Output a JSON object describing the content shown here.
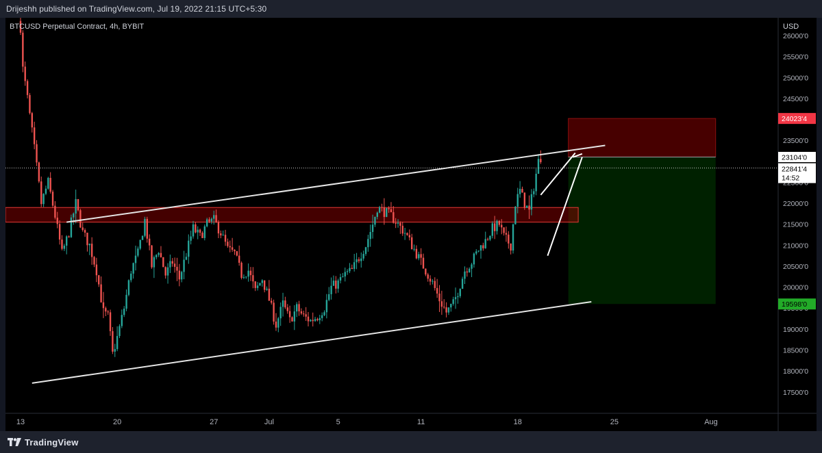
{
  "header": {
    "publish_text": "Drijeshh published on TradingView.com, Jul 19, 2022 21:15 UTC+5:30"
  },
  "chart_title": "BTCUSD Perpetual Contract, 4h, BYBIT",
  "footer": {
    "brand": "TradingView"
  },
  "chart_data": {
    "type": "candlestick",
    "symbol": "BTCUSD Perpetual Contract",
    "interval": "4h",
    "exchange": "BYBIT",
    "currency": "USD",
    "ylim": [
      17000,
      26500
    ],
    "yticks": [
      {
        "v": 17500,
        "label": "17500'0"
      },
      {
        "v": 18000,
        "label": "18000'0"
      },
      {
        "v": 18500,
        "label": "18500'0"
      },
      {
        "v": 19000,
        "label": "19000'0"
      },
      {
        "v": 19500,
        "label": "19500'0"
      },
      {
        "v": 20000,
        "label": "20000'0"
      },
      {
        "v": 20500,
        "label": "20500'0"
      },
      {
        "v": 21000,
        "label": "21000'0"
      },
      {
        "v": 21500,
        "label": "21500'0"
      },
      {
        "v": 22000,
        "label": "22000'0"
      },
      {
        "v": 22500,
        "label": "22500'0"
      },
      {
        "v": 23500,
        "label": "23500'0"
      },
      {
        "v": 24500,
        "label": "24500'0"
      },
      {
        "v": 25000,
        "label": "25000'0"
      },
      {
        "v": 25500,
        "label": "25500'0"
      },
      {
        "v": 26000,
        "label": "26000'0"
      }
    ],
    "xticks": [
      {
        "i": 0,
        "label": "13"
      },
      {
        "i": 42,
        "label": "20"
      },
      {
        "i": 84,
        "label": "27"
      },
      {
        "i": 108,
        "label": "Jul"
      },
      {
        "i": 138,
        "label": "5"
      },
      {
        "i": 174,
        "label": "11"
      },
      {
        "i": 216,
        "label": "18"
      },
      {
        "i": 258,
        "label": "25"
      },
      {
        "i": 300,
        "label": "Aug"
      }
    ],
    "candles_per_day": 6,
    "path": [
      [
        0,
        26200
      ],
      [
        1,
        25200
      ],
      [
        3,
        24500
      ],
      [
        6,
        23300
      ],
      [
        9,
        22000
      ],
      [
        12,
        22500
      ],
      [
        15,
        21700
      ],
      [
        18,
        20800
      ],
      [
        21,
        21300
      ],
      [
        24,
        22000
      ],
      [
        27,
        21300
      ],
      [
        30,
        21000
      ],
      [
        33,
        20400
      ],
      [
        36,
        19400
      ],
      [
        38,
        19300
      ],
      [
        40,
        18400
      ],
      [
        42,
        18800
      ],
      [
        45,
        19500
      ],
      [
        48,
        20400
      ],
      [
        51,
        20800
      ],
      [
        54,
        21600
      ],
      [
        57,
        20500
      ],
      [
        60,
        20900
      ],
      [
        63,
        20300
      ],
      [
        66,
        20600
      ],
      [
        69,
        20200
      ],
      [
        72,
        20800
      ],
      [
        75,
        21400
      ],
      [
        78,
        21200
      ],
      [
        81,
        21500
      ],
      [
        84,
        21600
      ],
      [
        87,
        21300
      ],
      [
        90,
        20900
      ],
      [
        93,
        20800
      ],
      [
        96,
        20300
      ],
      [
        99,
        20400
      ],
      [
        102,
        19900
      ],
      [
        105,
        20200
      ],
      [
        108,
        19700
      ],
      [
        111,
        19100
      ],
      [
        114,
        19600
      ],
      [
        117,
        19200
      ],
      [
        120,
        19500
      ],
      [
        123,
        19300
      ],
      [
        126,
        19200
      ],
      [
        129,
        19300
      ],
      [
        132,
        19500
      ],
      [
        135,
        20000
      ],
      [
        138,
        20100
      ],
      [
        141,
        20300
      ],
      [
        144,
        20400
      ],
      [
        147,
        20700
      ],
      [
        150,
        21000
      ],
      [
        153,
        21500
      ],
      [
        155,
        21900
      ],
      [
        158,
        21800
      ],
      [
        161,
        21700
      ],
      [
        164,
        21500
      ],
      [
        167,
        21300
      ],
      [
        170,
        21000
      ],
      [
        173,
        20700
      ],
      [
        176,
        20400
      ],
      [
        179,
        20100
      ],
      [
        182,
        19700
      ],
      [
        185,
        19400
      ],
      [
        188,
        19600
      ],
      [
        190,
        19900
      ],
      [
        193,
        20400
      ],
      [
        196,
        20600
      ],
      [
        199,
        20900
      ],
      [
        202,
        21100
      ],
      [
        205,
        21400
      ],
      [
        208,
        21500
      ],
      [
        210,
        21200
      ],
      [
        213,
        21000
      ],
      [
        215,
        22000
      ],
      [
        217,
        22300
      ],
      [
        219,
        22000
      ],
      [
        221,
        21800
      ],
      [
        223,
        22400
      ],
      [
        225,
        23000
      ],
      [
        226,
        23100
      ]
    ],
    "last_price": 22841.4,
    "countdown": "14:52",
    "price_labels": {
      "stop_loss": {
        "v": 24023.4,
        "label": "24023'4",
        "color": "#f23645"
      },
      "entry": {
        "v": 23104,
        "label": "23104'0",
        "color": "#ffffff"
      },
      "last": {
        "v": 22841.4,
        "label": "22841'4"
      },
      "take_profit": {
        "v": 19598,
        "label": "19598'0",
        "color": "#22ab28"
      }
    },
    "support_zone": {
      "from": 21550,
      "to": 21900
    },
    "trendlines": [
      {
        "x1": 20,
        "y1": 21550,
        "x2": 254,
        "y2": 23380
      },
      {
        "x1": 5,
        "y1": 17710,
        "x2": 248,
        "y2": 19650
      }
    ],
    "wedge_lines": [
      {
        "x1": 226,
        "y1": 22200,
        "x2": 241,
        "y2": 23200
      },
      {
        "x1": 229,
        "y1": 20750,
        "x2": 244,
        "y2": 23100
      },
      {
        "x1": 240,
        "y1": 23100,
        "x2": 244,
        "y2": 23180
      }
    ],
    "position": {
      "start_i": 238,
      "end_i": 302,
      "entry": 23104,
      "stop": 24023.4,
      "target": 19598,
      "side": "short"
    },
    "colors": {
      "up": "#26a69a",
      "down": "#ef5350",
      "grid": "#1b1f2b"
    },
    "grid": false
  }
}
